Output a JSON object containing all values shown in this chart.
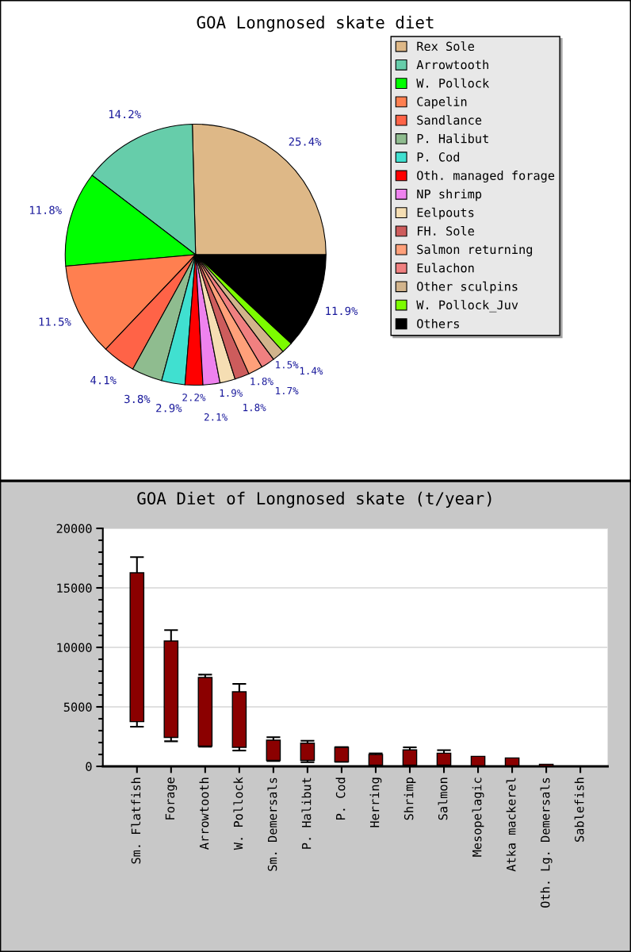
{
  "chart_data": [
    {
      "type": "pie",
      "title": "GOA Longnosed skate diet",
      "categories": [
        "Rex Sole",
        "Arrowtooth",
        "W. Pollock",
        "Capelin",
        "Sandlance",
        "P. Halibut",
        "P. Cod",
        "Oth. managed forage",
        "NP shrimp",
        "Eelpouts",
        "FH. Sole",
        "Salmon returning",
        "Eulachon",
        "Other sculpins",
        "W. Pollock_Juv",
        "Others"
      ],
      "values": [
        25.4,
        14.2,
        11.8,
        11.5,
        4.1,
        3.8,
        2.9,
        2.2,
        2.1,
        1.9,
        1.8,
        1.8,
        1.7,
        1.5,
        1.4,
        11.9
      ],
      "colors": [
        "#deb887",
        "#66cdaa",
        "#00ff00",
        "#ff7f50",
        "#ff6347",
        "#8fbc8f",
        "#40e0d0",
        "#ff0000",
        "#ee82ee",
        "#f5deb3",
        "#cd5c5c",
        "#ffa07a",
        "#f08080",
        "#d2b48c",
        "#7cfc00",
        "#000000"
      ],
      "value_labels": [
        "25.4%",
        "14.2%",
        "11.8%",
        "11.5%",
        "4.1%",
        "3.8%",
        "2.9%",
        "2.2%",
        "2.1%",
        "1.9%",
        "1.8%",
        "1.8%",
        "1.7%",
        "1.5%",
        "1.4%",
        "11.9%"
      ],
      "legend": "right"
    },
    {
      "type": "bar",
      "title": "GOA Diet of Longnosed skate (t/year)",
      "categories": [
        "Sm. Flatfish",
        "Forage",
        "Arrowtooth",
        "W. Pollock",
        "Sm. Demersals",
        "P. Halibut",
        "P. Cod",
        "Herring",
        "Shrimp",
        "Salmon",
        "Mesopelagic",
        "Atka mackerel",
        "Oth. Lg. Demersals",
        "Sablefish"
      ],
      "base": [
        3760,
        2430,
        1710,
        1600,
        510,
        500,
        380,
        100,
        100,
        100,
        50,
        50,
        20,
        null
      ],
      "values": [
        12510,
        8100,
        5760,
        4670,
        1690,
        1450,
        1220,
        900,
        1280,
        1010,
        790,
        660,
        150,
        null
      ],
      "errors": [
        [
          3330,
          17580
        ],
        [
          2110,
          11450
        ],
        [
          1650,
          7710
        ],
        [
          1330,
          6930
        ],
        [
          450,
          2450
        ],
        [
          350,
          2150
        ],
        [
          380,
          1620
        ],
        [
          50,
          1090
        ],
        [
          50,
          1600
        ],
        [
          50,
          1360
        ],
        null,
        null,
        null,
        null
      ],
      "color": "#8b0000",
      "ylim": [
        0,
        20000
      ],
      "yticks": [
        0,
        5000,
        10000,
        15000,
        20000
      ],
      "grid": "y"
    }
  ]
}
